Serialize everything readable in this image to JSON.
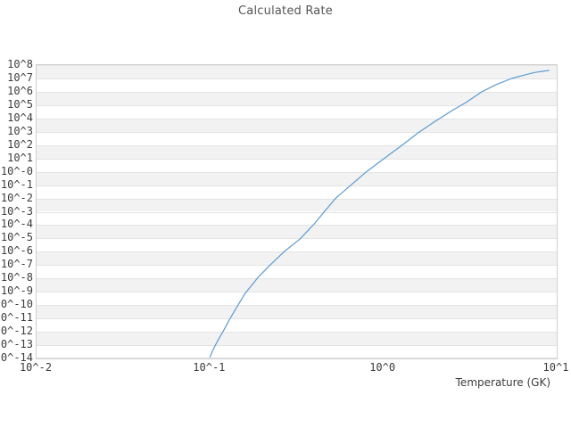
{
  "chart": {
    "title": "Calculated Rate",
    "x_axis_label": "Temperature (GK)"
  },
  "chart_data": {
    "type": "line",
    "title": "Calculated Rate",
    "xlabel": "Temperature (GK)",
    "ylabel": "",
    "x_scale": "log",
    "y_scale": "log",
    "xlim": [
      0.01,
      10
    ],
    "ylim": [
      1e-14,
      100000000.0
    ],
    "x_tick_labels": [
      "10^-2",
      "10^-1",
      "10^0",
      "10^1"
    ],
    "y_tick_labels": [
      "10^8",
      "10^7",
      "10^6",
      "10^5",
      "10^4",
      "10^3",
      "10^2",
      "10^1",
      "10^-0",
      "10^-1",
      "10^-2",
      "10^-3",
      "10^-4",
      "10^-5",
      "10^-6",
      "10^-7",
      "10^-8",
      "10^-9",
      "10^-10",
      "10^-11",
      "10^-12",
      "10^-13",
      "10^-14"
    ],
    "grid": "horizontal-only",
    "legend": "none",
    "line_color": "#5b9bd5",
    "band_color": "#f2f2f2",
    "gridline_color": "#e4e4e4",
    "series": [
      {
        "name": "Calculated Rate",
        "x": [
          0.1,
          0.105,
          0.11,
          0.12,
          0.13,
          0.145,
          0.16,
          0.19,
          0.22,
          0.27,
          0.33,
          0.4,
          0.46,
          0.53,
          0.65,
          0.8,
          1.0,
          1.3,
          1.6,
          2.0,
          2.5,
          3.0,
          3.7,
          4.5,
          5.5,
          6.5,
          7.5,
          9.0
        ],
        "log10_y": [
          -13.9,
          -13.25,
          -12.75,
          -11.9,
          -11.05,
          -10.0,
          -9.1,
          -7.9,
          -7.05,
          -5.95,
          -5.05,
          -3.9,
          -2.95,
          -2.0,
          -1.0,
          0.0,
          0.95,
          2.05,
          2.95,
          3.8,
          4.6,
          5.2,
          6.0,
          6.55,
          7.0,
          7.25,
          7.45,
          7.6
        ]
      }
    ]
  }
}
